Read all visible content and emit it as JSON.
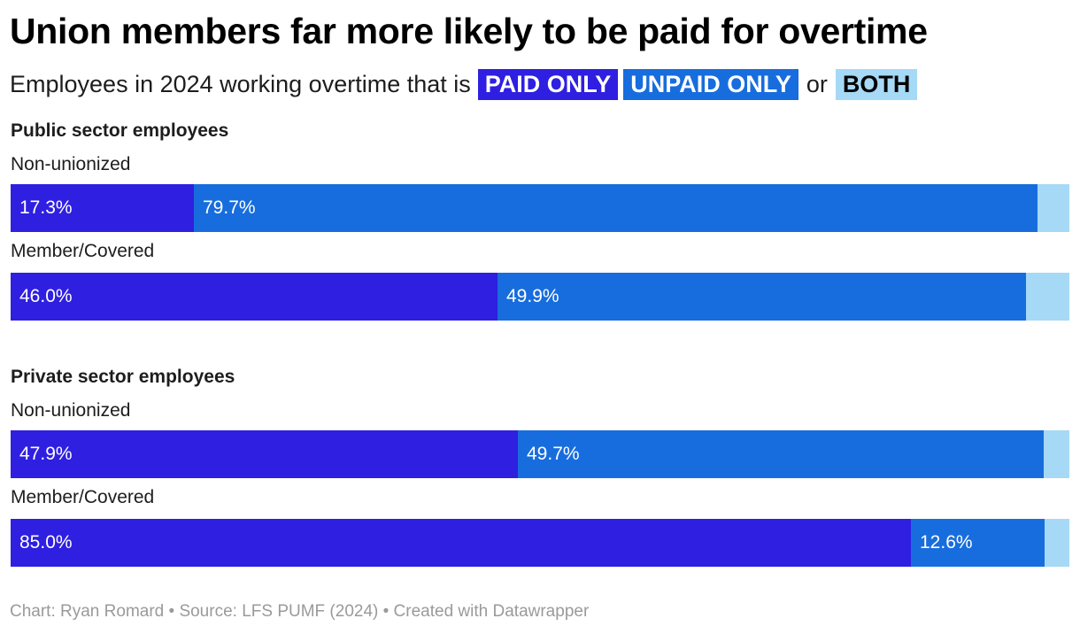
{
  "header": {
    "title": "Union members far more likely to be paid for overtime",
    "subtitle_prefix": "Employees in 2024 working overtime that is",
    "subtitle_or": "or"
  },
  "legend": [
    {
      "label": "PAID ONLY",
      "color": "#2f1fe0",
      "text_color": "#ffffff"
    },
    {
      "label": "UNPAID ONLY",
      "color": "#176ddd",
      "text_color": "#ffffff"
    },
    {
      "label": "BOTH",
      "color": "#a6d9f5",
      "text_color": "#000000"
    }
  ],
  "chart_data": {
    "type": "bar",
    "orientation": "horizontal",
    "stacked": true,
    "normalized_to": 100,
    "title": "Union members far more likely to be paid for overtime",
    "subtitle": "Employees in 2024 working overtime that is PAID ONLY, UNPAID ONLY or BOTH",
    "series": [
      {
        "name": "PAID ONLY",
        "color": "#2f1fe0"
      },
      {
        "name": "UNPAID ONLY",
        "color": "#176ddd"
      },
      {
        "name": "BOTH",
        "color": "#a6d9f5"
      }
    ],
    "groups": [
      {
        "title": "Public sector employees",
        "rows": [
          {
            "category": "Non-unionized",
            "values": [
              17.3,
              79.7,
              3.0
            ],
            "labels": [
              "17.3%",
              "79.7%",
              ""
            ]
          },
          {
            "category": "Member/Covered",
            "values": [
              46.0,
              49.9,
              4.1
            ],
            "labels": [
              "46.0%",
              "49.9%",
              ""
            ]
          }
        ]
      },
      {
        "title": "Private sector employees",
        "rows": [
          {
            "category": "Non-unionized",
            "values": [
              47.9,
              49.7,
              2.4
            ],
            "labels": [
              "47.9%",
              "49.7%",
              ""
            ]
          },
          {
            "category": "Member/Covered",
            "values": [
              85.0,
              12.6,
              2.4
            ],
            "labels": [
              "85.0%",
              "12.6%",
              ""
            ]
          }
        ]
      }
    ]
  },
  "footer": {
    "text": "Chart: Ryan Romard • Source: LFS PUMF (2024) • Created with Datawrapper"
  }
}
